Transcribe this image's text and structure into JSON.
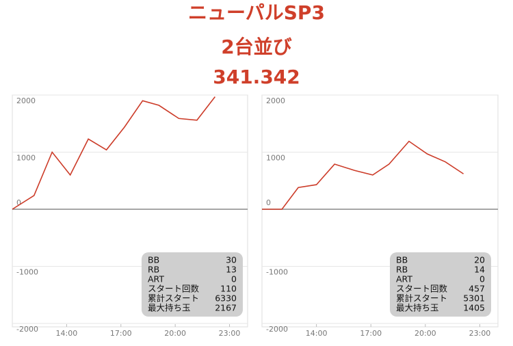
{
  "header": {
    "lines": [
      "ニューパルSP3",
      "2台並び",
      "341.342"
    ]
  },
  "chart_data": [
    {
      "type": "line",
      "x": [
        11,
        12.2,
        13.2,
        14.2,
        15.2,
        16.2,
        17.2,
        18.2,
        19.1,
        20.2,
        21.2,
        22.2
      ],
      "values": [
        0,
        240,
        1000,
        600,
        1230,
        1040,
        1440,
        1900,
        1820,
        1590,
        1560,
        1970
      ],
      "color": "#cc3b28",
      "xlim": [
        11,
        24
      ],
      "ylim": [
        -2000,
        2000
      ],
      "xticks": [
        {
          "value": 14,
          "label": "14:00"
        },
        {
          "value": 17,
          "label": "17:00"
        },
        {
          "value": 20,
          "label": "20:00"
        },
        {
          "value": 23,
          "label": "23:00"
        }
      ],
      "yticks": [
        2000,
        1000,
        0,
        -1000,
        -2000
      ],
      "grid": true,
      "stats": {
        "labels": [
          "BB",
          "RB",
          "ART",
          "スタート回数",
          "累計スタート",
          "最大持ち玉"
        ],
        "values": [
          30,
          13,
          0,
          110,
          6330,
          2167
        ]
      }
    },
    {
      "type": "line",
      "x": [
        11,
        12.1,
        13,
        14,
        15,
        16.1,
        17.1,
        18,
        19.1,
        20.1,
        21.1,
        22.1
      ],
      "values": [
        0,
        0,
        380,
        430,
        790,
        680,
        600,
        790,
        1190,
        970,
        830,
        620
      ],
      "color": "#cc3b28",
      "xlim": [
        11,
        24
      ],
      "ylim": [
        -2000,
        2000
      ],
      "xticks": [
        {
          "value": 14,
          "label": "14:00"
        },
        {
          "value": 17,
          "label": "17:00"
        },
        {
          "value": 20,
          "label": "20:00"
        },
        {
          "value": 23,
          "label": "23:00"
        }
      ],
      "yticks": [
        2000,
        1000,
        0,
        -1000,
        -2000
      ],
      "grid": true,
      "stats": {
        "labels": [
          "BB",
          "RB",
          "ART",
          "スタート回数",
          "累計スタート",
          "最大持ち玉"
        ],
        "values": [
          20,
          14,
          0,
          457,
          5301,
          1405
        ]
      }
    }
  ]
}
